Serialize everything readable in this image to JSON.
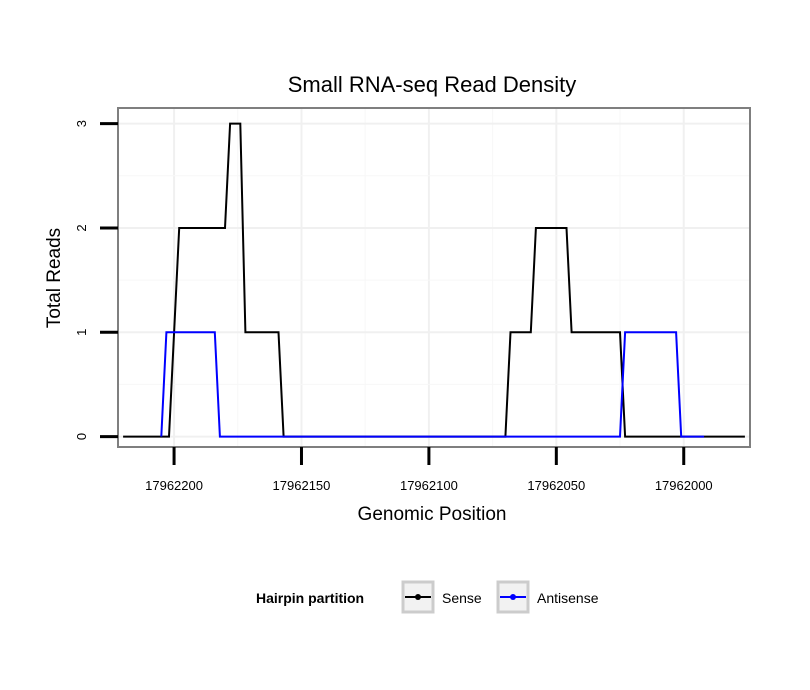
{
  "chart_data": {
    "type": "line",
    "title": "Small RNA-seq Read Density",
    "xlabel": "Genomic Position",
    "ylabel": "Total Reads",
    "x_reversed": true,
    "xlim": [
      17962222,
      17961974
    ],
    "ylim": [
      -0.1,
      3.15
    ],
    "x_ticks": [
      17962200,
      17962150,
      17962100,
      17962050,
      17962000
    ],
    "x_tick_labels": [
      "17962200",
      "17962150",
      "17962100",
      "17962050",
      "17962000"
    ],
    "y_ticks": [
      0,
      1,
      2,
      3
    ],
    "y_tick_labels": [
      "0",
      "1",
      "2",
      "3"
    ],
    "grid": true,
    "legend": {
      "title": "Hairpin partition",
      "position": "bottom"
    },
    "series": [
      {
        "name": "Sense",
        "color": "#000000",
        "x": [
          17962220,
          17962202,
          17962200,
          17962198,
          17962180,
          17962178,
          17962176,
          17962174,
          17962172,
          17962159,
          17962157,
          17962070,
          17962068,
          17962060,
          17962058,
          17962050,
          17962048,
          17962046,
          17962044,
          17962034,
          17962032,
          17962025,
          17962023,
          17961994,
          17961992,
          17961976
        ],
        "y": [
          0,
          0,
          1,
          2,
          2,
          3,
          3,
          3,
          1,
          1,
          0,
          0,
          1,
          1,
          2,
          2,
          2,
          2,
          1,
          1,
          1,
          1,
          0,
          0,
          0,
          0
        ]
      },
      {
        "name": "Antisense",
        "color": "#0000ff",
        "x": [
          17962205,
          17962203,
          17962184,
          17962182,
          17962162,
          17962160,
          17962155,
          17962153,
          17962030,
          17962025,
          17962023,
          17962003,
          17962001,
          17961994,
          17961992
        ],
        "y": [
          0,
          1,
          1,
          0,
          0,
          0,
          0,
          0,
          0,
          0,
          1,
          1,
          0,
          0,
          0
        ]
      }
    ]
  }
}
